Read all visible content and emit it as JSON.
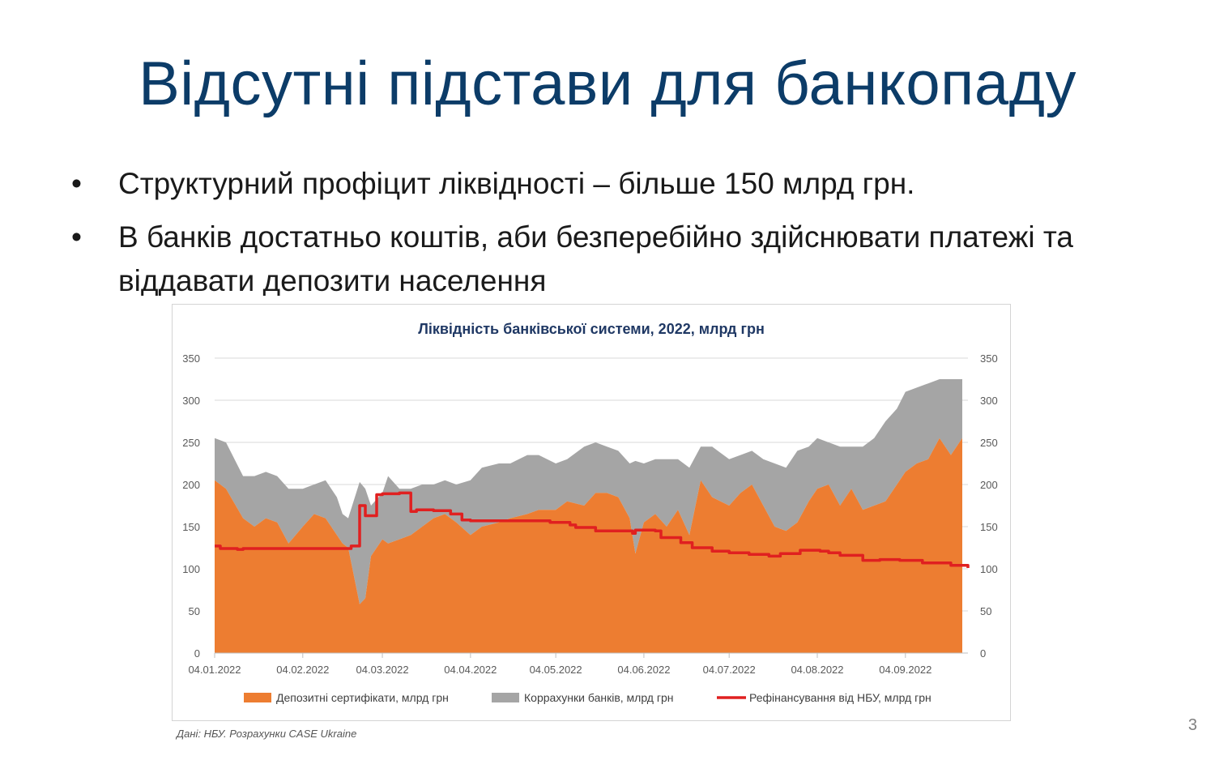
{
  "slide": {
    "title": "Відсутні підстави для банкопаду",
    "bullets": [
      "Структурний профіцит ліквідності – більше 150 млрд грн.",
      "В банків достатньо коштів, аби безперебійно здійснювати платежі та віддавати депозити населення"
    ],
    "source": "Дані: НБУ. Розрахунки CASE Ukraine",
    "page_number": "3"
  },
  "chart_data": {
    "type": "area",
    "title": "Ліквідність банківської системи, 2022, млрд грн",
    "x_tick_labels": [
      "04.01.2022",
      "04.02.2022",
      "04.03.2022",
      "04.04.2022",
      "04.05.2022",
      "04.06.2022",
      "04.07.2022",
      "04.08.2022",
      "04.09.2022"
    ],
    "y_tick_labels": [
      "0",
      "50",
      "100",
      "150",
      "200",
      "250",
      "300",
      "350"
    ],
    "ylim": [
      0,
      350
    ],
    "x_start": "2022-01-04",
    "x_end": "2022-09-26",
    "series": [
      {
        "name": "Депозитні сертифікати, млрд грн",
        "kind": "area",
        "color": "#ed7d31",
        "x": [
          "2022-01-04",
          "2022-01-08",
          "2022-01-14",
          "2022-01-18",
          "2022-01-22",
          "2022-01-26",
          "2022-01-30",
          "2022-02-04",
          "2022-02-08",
          "2022-02-12",
          "2022-02-16",
          "2022-02-18",
          "2022-02-20",
          "2022-02-24",
          "2022-02-26",
          "2022-02-28",
          "2022-03-04",
          "2022-03-06",
          "2022-03-10",
          "2022-03-14",
          "2022-03-18",
          "2022-03-22",
          "2022-03-26",
          "2022-03-30",
          "2022-04-04",
          "2022-04-08",
          "2022-04-14",
          "2022-04-18",
          "2022-04-24",
          "2022-04-28",
          "2022-05-04",
          "2022-05-08",
          "2022-05-14",
          "2022-05-18",
          "2022-05-22",
          "2022-05-26",
          "2022-05-30",
          "2022-06-01",
          "2022-06-04",
          "2022-06-08",
          "2022-06-12",
          "2022-06-16",
          "2022-06-20",
          "2022-06-24",
          "2022-06-28",
          "2022-07-04",
          "2022-07-08",
          "2022-07-12",
          "2022-07-16",
          "2022-07-20",
          "2022-07-24",
          "2022-07-28",
          "2022-08-01",
          "2022-08-04",
          "2022-08-08",
          "2022-08-12",
          "2022-08-16",
          "2022-08-20",
          "2022-08-24",
          "2022-08-28",
          "2022-09-01",
          "2022-09-04",
          "2022-09-08",
          "2022-09-12",
          "2022-09-16",
          "2022-09-20",
          "2022-09-24"
        ],
        "values": [
          205,
          195,
          160,
          150,
          160,
          155,
          130,
          150,
          165,
          160,
          140,
          130,
          125,
          58,
          65,
          115,
          135,
          130,
          135,
          140,
          150,
          160,
          165,
          155,
          140,
          150,
          155,
          160,
          165,
          170,
          170,
          180,
          175,
          190,
          190,
          185,
          160,
          118,
          155,
          165,
          150,
          170,
          140,
          205,
          185,
          175,
          190,
          200,
          175,
          150,
          145,
          155,
          180,
          195,
          200,
          175,
          195,
          170,
          175,
          180,
          200,
          215,
          225,
          230,
          255,
          235,
          255
        ]
      },
      {
        "name": "Коррахунки банків, млрд грн",
        "kind": "area",
        "color": "#a5a5a5",
        "x": [
          "2022-01-04",
          "2022-01-08",
          "2022-01-14",
          "2022-01-18",
          "2022-01-22",
          "2022-01-26",
          "2022-01-30",
          "2022-02-04",
          "2022-02-08",
          "2022-02-12",
          "2022-02-16",
          "2022-02-18",
          "2022-02-20",
          "2022-02-24",
          "2022-02-26",
          "2022-02-28",
          "2022-03-04",
          "2022-03-06",
          "2022-03-10",
          "2022-03-14",
          "2022-03-18",
          "2022-03-22",
          "2022-03-26",
          "2022-03-30",
          "2022-04-04",
          "2022-04-08",
          "2022-04-14",
          "2022-04-18",
          "2022-04-24",
          "2022-04-28",
          "2022-05-04",
          "2022-05-08",
          "2022-05-14",
          "2022-05-18",
          "2022-05-22",
          "2022-05-26",
          "2022-05-30",
          "2022-06-01",
          "2022-06-04",
          "2022-06-08",
          "2022-06-12",
          "2022-06-16",
          "2022-06-20",
          "2022-06-24",
          "2022-06-28",
          "2022-07-04",
          "2022-07-08",
          "2022-07-12",
          "2022-07-16",
          "2022-07-20",
          "2022-07-24",
          "2022-07-28",
          "2022-08-01",
          "2022-08-04",
          "2022-08-08",
          "2022-08-12",
          "2022-08-16",
          "2022-08-20",
          "2022-08-24",
          "2022-08-28",
          "2022-09-01",
          "2022-09-04",
          "2022-09-08",
          "2022-09-12",
          "2022-09-16",
          "2022-09-20",
          "2022-09-24"
        ],
        "values": [
          50,
          55,
          50,
          60,
          55,
          55,
          65,
          45,
          35,
          45,
          45,
          35,
          35,
          145,
          130,
          60,
          55,
          80,
          60,
          55,
          50,
          40,
          40,
          45,
          65,
          70,
          70,
          65,
          70,
          65,
          55,
          50,
          70,
          60,
          55,
          55,
          65,
          110,
          70,
          65,
          80,
          60,
          80,
          40,
          60,
          55,
          45,
          40,
          55,
          75,
          75,
          85,
          65,
          60,
          50,
          70,
          50,
          75,
          80,
          95,
          90,
          95,
          90,
          90,
          70,
          90,
          70
        ]
      },
      {
        "name": "Рефінансування від НБУ, млрд грн",
        "kind": "line",
        "color": "#e02020",
        "x": [
          "2022-01-04",
          "2022-01-06",
          "2022-01-12",
          "2022-01-14",
          "2022-02-18",
          "2022-02-21",
          "2022-02-24",
          "2022-02-26",
          "2022-03-02",
          "2022-03-04",
          "2022-03-10",
          "2022-03-14",
          "2022-03-16",
          "2022-03-22",
          "2022-03-28",
          "2022-04-01",
          "2022-04-04",
          "2022-04-29",
          "2022-05-02",
          "2022-05-09",
          "2022-05-11",
          "2022-05-18",
          "2022-05-31",
          "2022-06-01",
          "2022-06-08",
          "2022-06-10",
          "2022-06-17",
          "2022-06-21",
          "2022-06-28",
          "2022-07-04",
          "2022-07-11",
          "2022-07-18",
          "2022-07-22",
          "2022-07-29",
          "2022-08-05",
          "2022-08-08",
          "2022-08-12",
          "2022-08-20",
          "2022-08-26",
          "2022-09-02",
          "2022-09-10",
          "2022-09-20",
          "2022-09-26"
        ],
        "values": [
          127,
          124,
          123,
          124,
          124,
          127,
          175,
          163,
          188,
          189,
          190,
          168,
          170,
          169,
          165,
          158,
          157,
          157,
          155,
          152,
          149,
          145,
          142,
          146,
          145,
          137,
          131,
          125,
          121,
          119,
          117,
          115,
          118,
          122,
          121,
          119,
          116,
          110,
          111,
          110,
          107,
          104,
          101
        ]
      }
    ]
  }
}
